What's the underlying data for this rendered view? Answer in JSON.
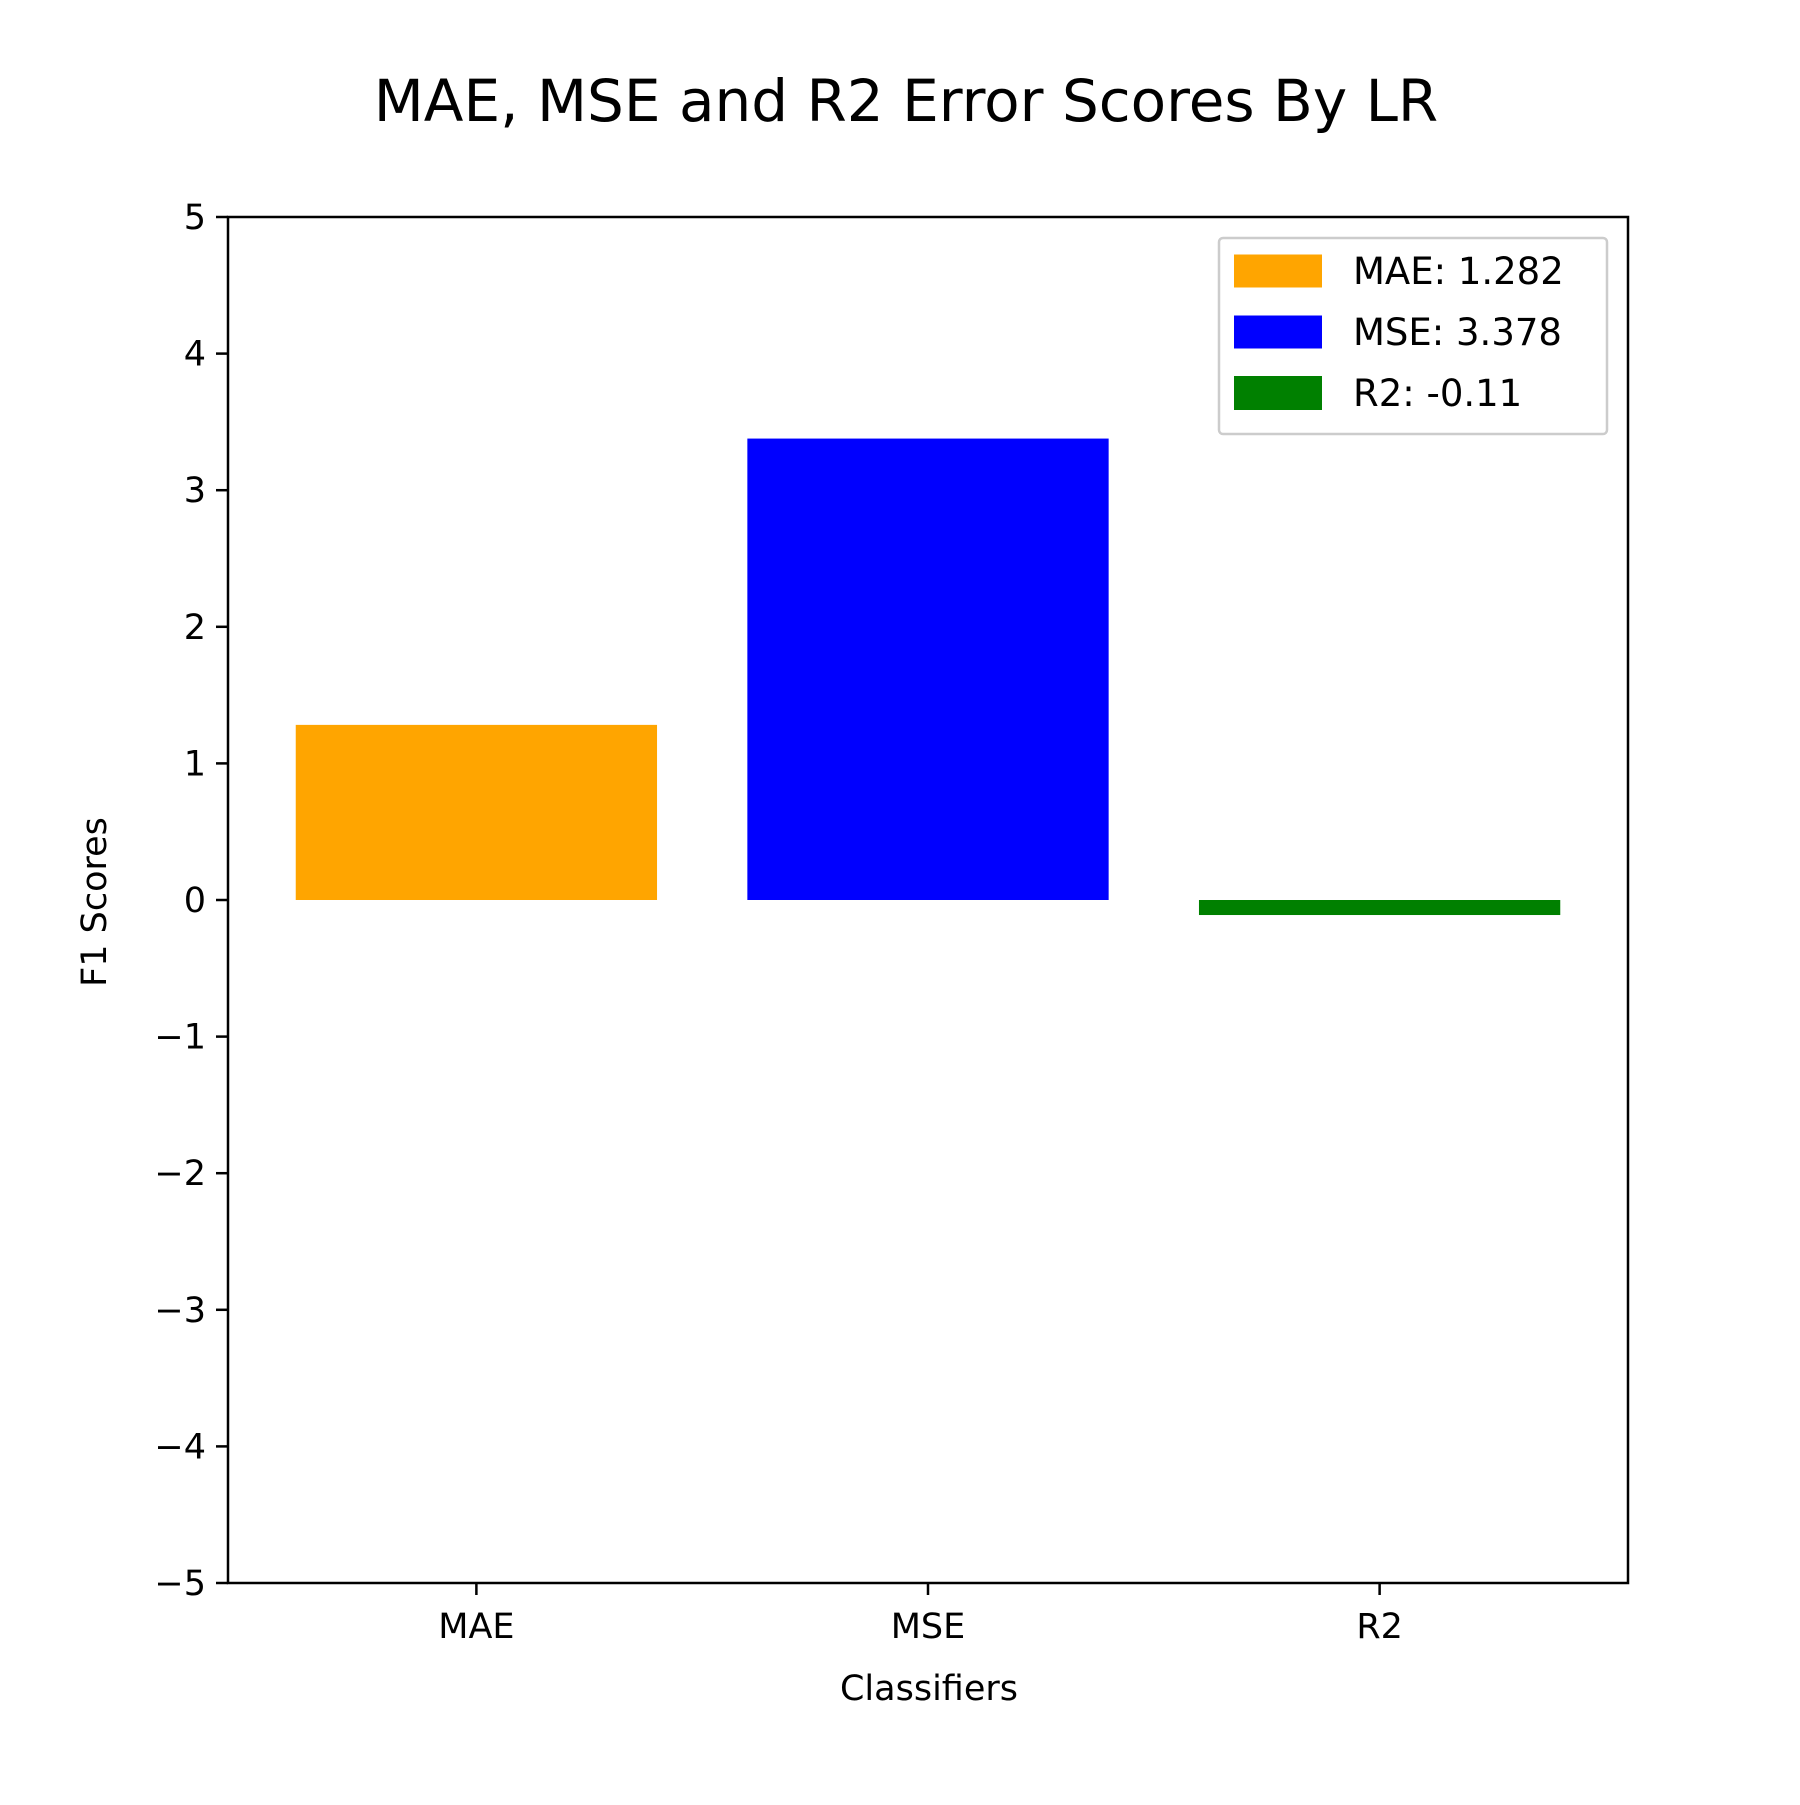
{
  "chart_data": {
    "type": "bar",
    "title": "MAE, MSE and R2 Error Scores By LR",
    "xlabel": "Classifiers",
    "ylabel": "F1 Scores",
    "categories": [
      "MAE",
      "MSE",
      "R2"
    ],
    "values": [
      1.282,
      3.378,
      -0.11
    ],
    "colors": [
      "#ffa500",
      "#0000ff",
      "#008000"
    ],
    "ylim": [
      -5,
      5
    ],
    "yticks": [
      5,
      4,
      3,
      2,
      1,
      0,
      -1,
      -2,
      -3,
      -4,
      -5
    ],
    "ytick_labels": [
      "5",
      "4",
      "3",
      "2",
      "1",
      "0",
      "−1",
      "−2",
      "−3",
      "−4",
      "−5"
    ],
    "grid": false,
    "legend": {
      "placement": "top-right",
      "entries": [
        "MAE: 1.282",
        "MSE: 3.378",
        "R2: -0.11"
      ]
    }
  }
}
